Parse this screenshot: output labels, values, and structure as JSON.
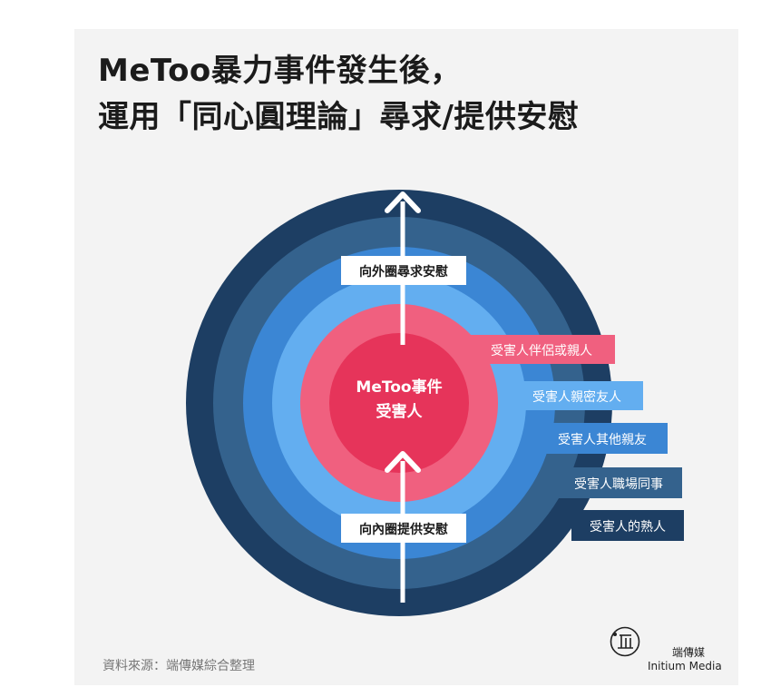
{
  "title": {
    "line1": "MeToo暴力事件發生後，",
    "line2": "運用「同心圓理論」尋求/提供安慰"
  },
  "center": {
    "line1": "MeToo事件",
    "line2": "受害人"
  },
  "arrows": {
    "outward": "向外圈尋求安慰",
    "inward": "向內圈提供安慰"
  },
  "rings": [
    {
      "label": "受害人伴侶或親人",
      "color": "#f0607f"
    },
    {
      "label": "受害人親密友人",
      "color": "#63aef0"
    },
    {
      "label": "受害人其他親友",
      "color": "#3b86d4"
    },
    {
      "label": "受害人職場同事",
      "color": "#34628d"
    },
    {
      "label": "受害人的熟人",
      "color": "#1d3e63"
    }
  ],
  "colors": {
    "center": "#e6345a",
    "arrow": "#ffffff",
    "tag_text": "#ffffff",
    "title_text": "#1b1b1b"
  },
  "footer": {
    "source": "資料來源：端傳媒綜合整理",
    "brand_cn": "端傳媒",
    "brand_en": "Initium Media",
    "brand_icon": "initium-logo-icon"
  }
}
